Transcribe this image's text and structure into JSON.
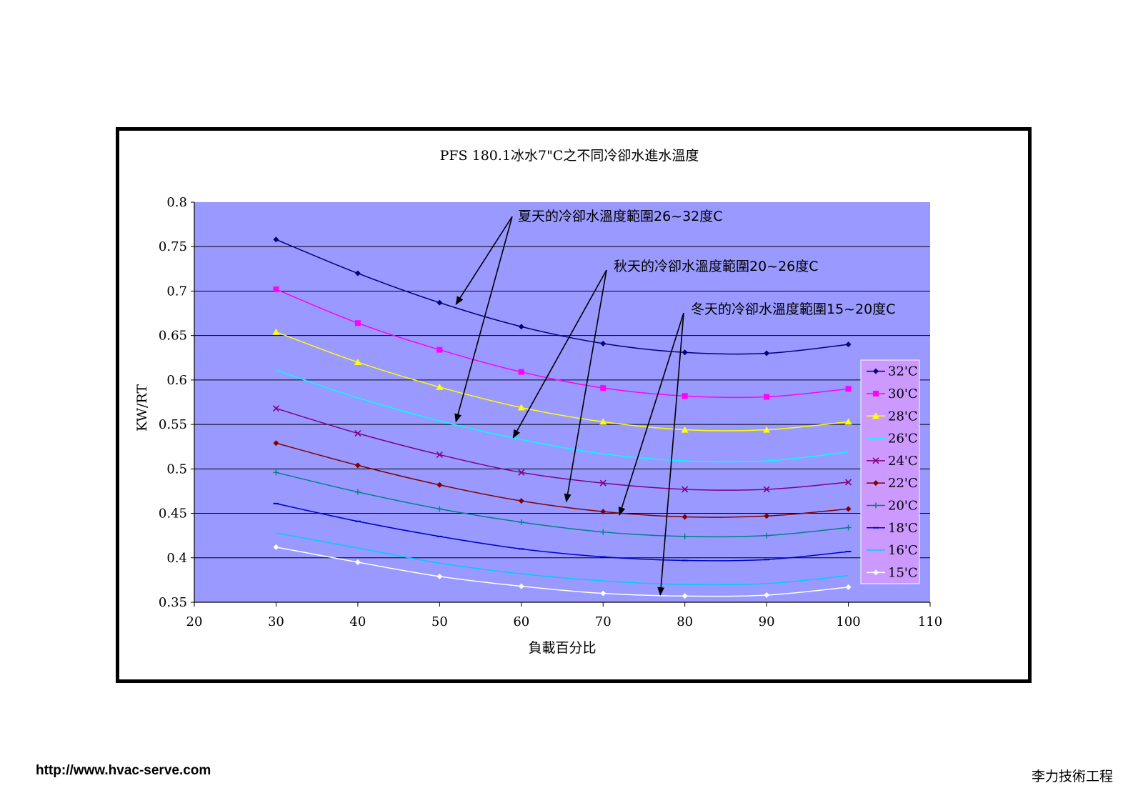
{
  "footer": {
    "url": "http://www.hvac-serve.com",
    "company": "李力技術工程"
  },
  "chart_data": {
    "type": "line",
    "title": "PFS 180.1冰水7\"C之不同冷卻水進水溫度",
    "xlabel": "負載百分比",
    "ylabel": "KW/RT",
    "xlim": [
      20,
      110
    ],
    "ylim": [
      0.35,
      0.8
    ],
    "x_ticks": [
      "20",
      "30",
      "40",
      "50",
      "60",
      "70",
      "80",
      "90",
      "100",
      "110"
    ],
    "y_ticks": [
      "0.35",
      "0.4",
      "0.45",
      "0.5",
      "0.55",
      "0.6",
      "0.65",
      "0.7",
      "0.75",
      "0.8"
    ],
    "grid": "horizontal",
    "plot_background": "#9999ff",
    "legend_position": "right",
    "x": [
      30,
      40,
      50,
      60,
      70,
      80,
      90,
      100
    ],
    "series": [
      {
        "name": "32'C",
        "color": "#000080",
        "marker": "diamond",
        "values": [
          0.758,
          0.72,
          0.687,
          0.66,
          0.641,
          0.631,
          0.63,
          0.64
        ]
      },
      {
        "name": "30'C",
        "color": "#ff00ff",
        "marker": "square",
        "values": [
          0.702,
          0.664,
          0.634,
          0.609,
          0.591,
          0.582,
          0.581,
          0.59
        ]
      },
      {
        "name": "28'C",
        "color": "#ffff00",
        "marker": "triangle",
        "values": [
          0.654,
          0.62,
          0.592,
          0.569,
          0.553,
          0.544,
          0.544,
          0.553
        ]
      },
      {
        "name": "26'C",
        "color": "#00ffff",
        "marker": "none",
        "values": [
          0.611,
          0.58,
          0.554,
          0.533,
          0.517,
          0.509,
          0.509,
          0.519
        ]
      },
      {
        "name": "24'C",
        "color": "#800080",
        "marker": "x",
        "values": [
          0.568,
          0.54,
          0.516,
          0.496,
          0.484,
          0.477,
          0.477,
          0.485
        ]
      },
      {
        "name": "22'C",
        "color": "#800000",
        "marker": "diamond",
        "values": [
          0.529,
          0.504,
          0.482,
          0.464,
          0.452,
          0.446,
          0.447,
          0.455
        ]
      },
      {
        "name": "20'C",
        "color": "#008080",
        "marker": "plus",
        "values": [
          0.496,
          0.474,
          0.455,
          0.44,
          0.429,
          0.424,
          0.425,
          0.434
        ]
      },
      {
        "name": "18'C",
        "color": "#0000cc",
        "marker": "dash",
        "values": [
          0.461,
          0.441,
          0.424,
          0.41,
          0.401,
          0.397,
          0.398,
          0.407
        ]
      },
      {
        "name": "16'C",
        "color": "#00ccff",
        "marker": "none",
        "values": [
          0.428,
          0.411,
          0.394,
          0.382,
          0.374,
          0.37,
          0.371,
          0.38
        ]
      },
      {
        "name": "15'C",
        "color": "#ffffff",
        "marker": "diamond",
        "values": [
          0.412,
          0.395,
          0.379,
          0.368,
          0.36,
          0.357,
          0.358,
          0.367
        ]
      }
    ],
    "annotations": [
      {
        "text": "夏天的冷卻水溫度範圍26~32度C",
        "targets": [
          [
            52,
            0.685
          ],
          [
            52,
            0.553
          ]
        ]
      },
      {
        "text": "秋天的冷卻水溫度範圍20~26度C",
        "targets": [
          [
            59,
            0.535
          ],
          [
            65.5,
            0.463
          ]
        ]
      },
      {
        "text": "冬天的冷卻水溫度範圍15~20度C",
        "targets": [
          [
            72,
            0.448
          ],
          [
            77,
            0.358
          ]
        ]
      }
    ]
  }
}
